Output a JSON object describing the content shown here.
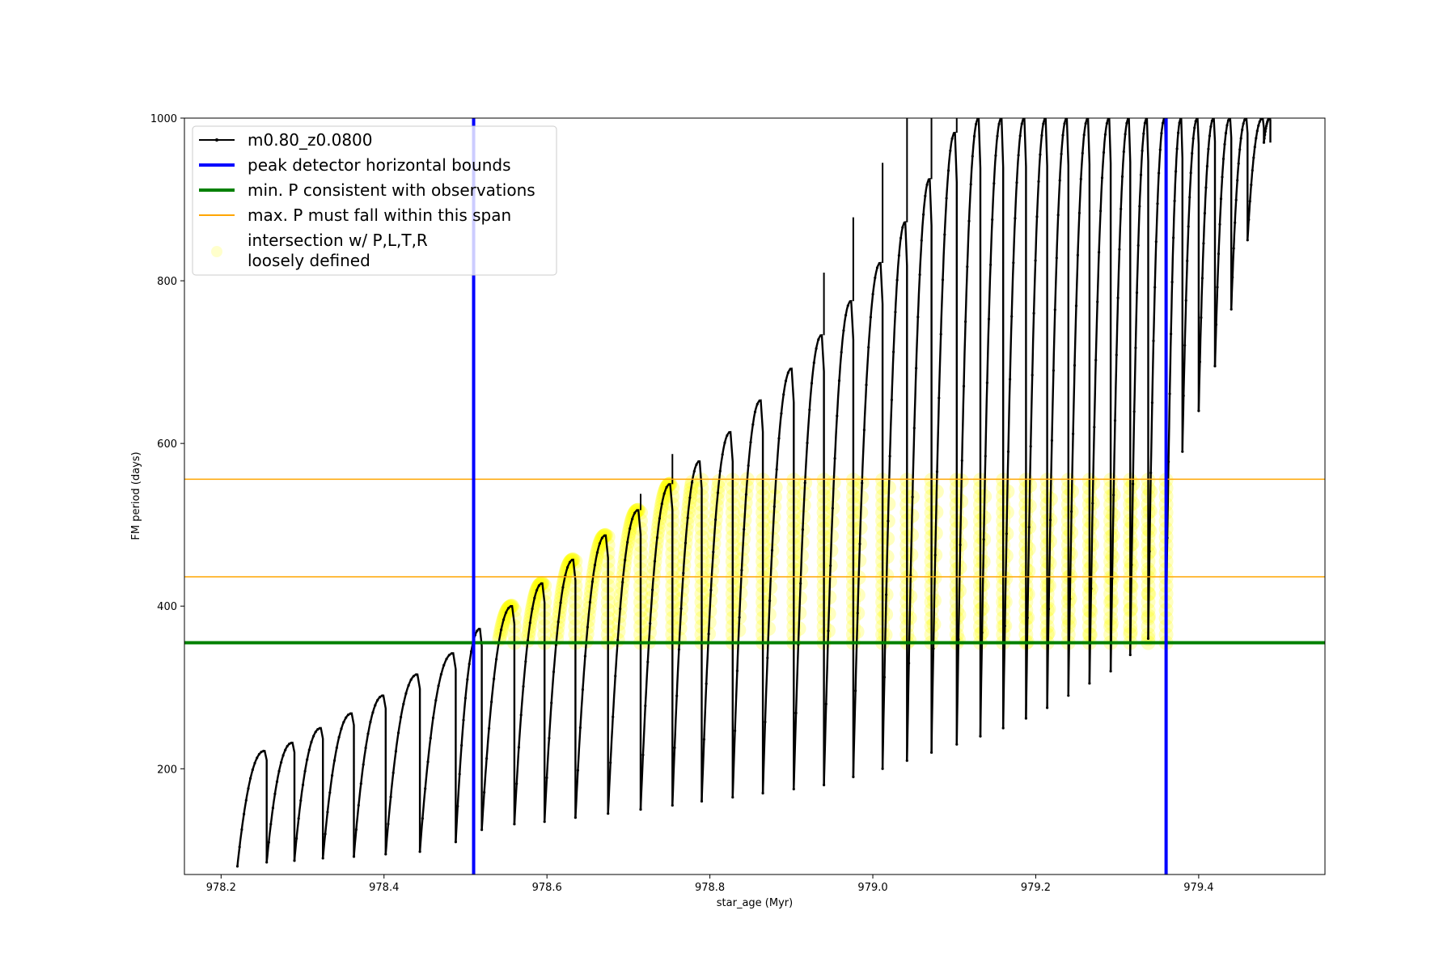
{
  "chart_data": {
    "type": "line",
    "title": "",
    "xlabel": "star_age (Myr)",
    "ylabel": "FM period (days)",
    "xlim": [
      978.155,
      979.555
    ],
    "ylim": [
      70,
      1000
    ],
    "x_ticks": [
      978.2,
      978.4,
      978.6,
      978.8,
      979.0,
      979.2,
      979.4
    ],
    "x_tick_labels": [
      "978.2",
      "978.4",
      "978.6",
      "978.8",
      "979.0",
      "979.2",
      "979.4"
    ],
    "y_ticks": [
      200,
      400,
      600,
      800,
      1000
    ],
    "y_tick_labels": [
      "200",
      "400",
      "600",
      "800",
      "1000"
    ],
    "grid": false,
    "legend_position": "upper-left",
    "colors": {
      "series": "#000000",
      "peak_bounds": "#0000ff",
      "min_period": "#008000",
      "max_period_span": "#ffa500",
      "intersection": "#ffff00"
    },
    "series": [
      {
        "name": "m0.80_z0.0800",
        "style": "black line with small dot markers (pulsation cycles)",
        "cycles": [
          {
            "start": 978.22,
            "end": 978.256,
            "min": 80,
            "peak": 222,
            "spike": 185
          },
          {
            "start": 978.256,
            "end": 978.29,
            "min": 85,
            "peak": 232,
            "spike": 232
          },
          {
            "start": 978.29,
            "end": 978.325,
            "min": 87,
            "peak": 250,
            "spike": 250
          },
          {
            "start": 978.325,
            "end": 978.363,
            "min": 90,
            "peak": 268,
            "spike": 268
          },
          {
            "start": 978.363,
            "end": 978.402,
            "min": 92,
            "peak": 290,
            "spike": 290
          },
          {
            "start": 978.402,
            "end": 978.444,
            "min": 95,
            "peak": 316,
            "spike": 316
          },
          {
            "start": 978.444,
            "end": 978.488,
            "min": 98,
            "peak": 342,
            "spike": 342
          },
          {
            "start": 978.488,
            "end": 978.52,
            "min": 110,
            "peak": 372,
            "spike": 372
          },
          {
            "start": 978.52,
            "end": 978.56,
            "min": 125,
            "peak": 400,
            "spike": 400
          },
          {
            "start": 978.56,
            "end": 978.597,
            "min": 132,
            "peak": 428,
            "spike": 428
          },
          {
            "start": 978.597,
            "end": 978.635,
            "min": 135,
            "peak": 457,
            "spike": 457
          },
          {
            "start": 978.635,
            "end": 978.675,
            "min": 140,
            "peak": 487,
            "spike": 487
          },
          {
            "start": 978.675,
            "end": 978.715,
            "min": 145,
            "peak": 518,
            "spike": 538
          },
          {
            "start": 978.715,
            "end": 978.754,
            "min": 150,
            "peak": 550,
            "spike": 587
          },
          {
            "start": 978.754,
            "end": 978.79,
            "min": 155,
            "peak": 578,
            "spike": 578
          },
          {
            "start": 978.79,
            "end": 978.828,
            "min": 160,
            "peak": 614,
            "spike": 614
          },
          {
            "start": 978.828,
            "end": 978.865,
            "min": 165,
            "peak": 653,
            "spike": 653
          },
          {
            "start": 978.865,
            "end": 978.903,
            "min": 170,
            "peak": 692,
            "spike": 692
          },
          {
            "start": 978.903,
            "end": 978.94,
            "min": 175,
            "peak": 733,
            "spike": 810
          },
          {
            "start": 978.94,
            "end": 978.976,
            "min": 180,
            "peak": 775,
            "spike": 878
          },
          {
            "start": 978.976,
            "end": 979.012,
            "min": 190,
            "peak": 822,
            "spike": 945
          },
          {
            "start": 979.012,
            "end": 979.042,
            "min": 200,
            "peak": 872,
            "spike": 1000
          },
          {
            "start": 979.042,
            "end": 979.072,
            "min": 210,
            "peak": 925,
            "spike": 1000
          },
          {
            "start": 979.072,
            "end": 979.103,
            "min": 220,
            "peak": 982,
            "spike": 1000
          },
          {
            "start": 979.103,
            "end": 979.132,
            "min": 230,
            "peak": 1000,
            "spike": 1000
          },
          {
            "start": 979.132,
            "end": 979.16,
            "min": 240,
            "peak": 1000,
            "spike": 1000
          },
          {
            "start": 979.16,
            "end": 979.188,
            "min": 250,
            "peak": 1000,
            "spike": 1000
          },
          {
            "start": 979.188,
            "end": 979.214,
            "min": 262,
            "peak": 1000,
            "spike": 1000
          },
          {
            "start": 979.214,
            "end": 979.24,
            "min": 275,
            "peak": 1000,
            "spike": 1000
          },
          {
            "start": 979.24,
            "end": 979.266,
            "min": 290,
            "peak": 1000,
            "spike": 1000
          },
          {
            "start": 979.266,
            "end": 979.292,
            "min": 305,
            "peak": 1000,
            "spike": 1000
          },
          {
            "start": 979.292,
            "end": 979.316,
            "min": 320,
            "peak": 1000,
            "spike": 1000
          },
          {
            "start": 979.316,
            "end": 979.338,
            "min": 340,
            "peak": 1000,
            "spike": 1000
          },
          {
            "start": 979.338,
            "end": 979.36,
            "min": 360,
            "peak": 1000,
            "spike": 1000
          },
          {
            "start": 979.36,
            "end": 979.38,
            "min": 380,
            "peak": 1000,
            "spike": 1000
          },
          {
            "start": 979.38,
            "end": 979.4,
            "min": 590,
            "peak": 1000,
            "spike": 1000
          },
          {
            "start": 979.4,
            "end": 979.42,
            "min": 640,
            "peak": 1000,
            "spike": 1000
          },
          {
            "start": 979.42,
            "end": 979.44,
            "min": 695,
            "peak": 1000,
            "spike": 1000
          },
          {
            "start": 979.44,
            "end": 979.46,
            "min": 765,
            "peak": 1000,
            "spike": 1000
          },
          {
            "start": 979.46,
            "end": 979.48,
            "min": 850,
            "peak": 1000,
            "spike": 1000
          },
          {
            "start": 979.48,
            "end": 979.488,
            "min": 970,
            "peak": 1000,
            "spike": 1000
          }
        ]
      },
      {
        "name": "peak detector horizontal bounds",
        "style": "vertical blue lines",
        "x": [
          978.51,
          979.36
        ]
      },
      {
        "name": "min. P consistent with observations",
        "style": "horizontal green line",
        "y": 355
      },
      {
        "name": "max. P must fall within this span",
        "style": "horizontal orange lines",
        "y": [
          436,
          556
        ]
      },
      {
        "name": "intersection w/ P,L,T,R\nloosely defined",
        "style": "translucent yellow markers where the series lies between the min. P line and the upper max. P line, inside the peak detector bounds",
        "y_range": [
          355,
          556
        ],
        "x_range": [
          978.51,
          979.36
        ]
      }
    ]
  },
  "legend": {
    "entries": [
      {
        "label": "m0.80_z0.0800"
      },
      {
        "label": "peak detector horizontal bounds"
      },
      {
        "label": "min. P consistent with observations"
      },
      {
        "label": "max. P must fall within this span"
      },
      {
        "label": "intersection w/ P,L,T,R",
        "label2": "loosely defined"
      }
    ]
  }
}
